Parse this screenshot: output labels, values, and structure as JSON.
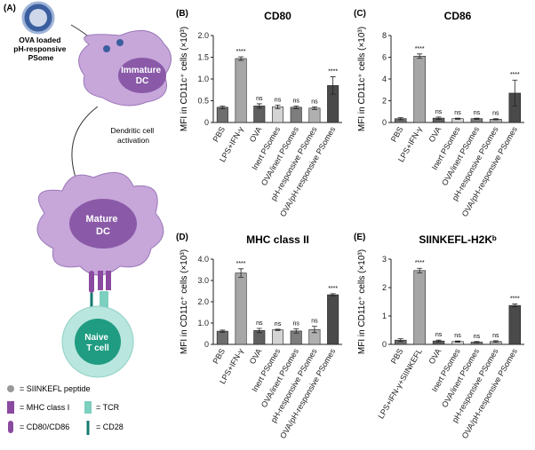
{
  "diagram": {
    "panel": "(A)",
    "psome": [
      "OVA loaded",
      "pH-responsive",
      "PSome"
    ],
    "immature": [
      "Immature",
      "DC"
    ],
    "activation": [
      "Dendritic cell",
      "activation"
    ],
    "mature": [
      "Mature",
      "DC"
    ],
    "tcell": [
      "Naive",
      "T cell"
    ],
    "legend": [
      "= SIINKEFL peptide",
      "= MHC class I",
      "= TCR",
      "= CD80/CD86",
      "= CD28"
    ]
  },
  "chart_data": [
    {
      "type": "bar",
      "panel": "(B)",
      "title": "CD80",
      "ylabel": "MFI in CD11c⁺ cells (×10³)",
      "categories": [
        "PBS",
        "LPS+IFN-γ",
        "OVA",
        "Inert PSomes",
        "OVA/inert PSomes",
        "pH-responsive PSomes",
        "OVA/pH-responsive PSomes"
      ],
      "values": [
        0.35,
        1.47,
        0.38,
        0.36,
        0.35,
        0.33,
        0.85
      ],
      "errors": [
        0.03,
        0.04,
        0.05,
        0.04,
        0.03,
        0.03,
        0.2
      ],
      "significance": [
        null,
        "****",
        "ns",
        "ns",
        "ns",
        "ns",
        "****"
      ],
      "colors": [
        "#6e6e6e",
        "#a6a6a6",
        "#5f5f5f",
        "#d4d4d4",
        "#7d7d7d",
        "#b0b0b0",
        "#4a4a4a"
      ],
      "ylim": [
        0,
        2
      ],
      "yticks": [
        0,
        0.5,
        {
          "value": 1,
          "label": "1.0"
        },
        1.5,
        {
          "value": 2,
          "label": "2.0"
        }
      ]
    },
    {
      "type": "bar",
      "panel": "(C)",
      "title": "CD86",
      "ylabel": "MFI in CD11c⁺ cells (×10³)",
      "categories": [
        "PBS",
        "LPS+IFN-γ",
        "OVA",
        "Inert PSomes",
        "OVA/inert PSomes",
        "pH-responsive PSomes",
        "OVA/pH-responsive PSomes"
      ],
      "values": [
        0.35,
        6.1,
        0.4,
        0.35,
        0.35,
        0.3,
        2.7
      ],
      "errors": [
        0.1,
        0.2,
        0.1,
        0.05,
        0.05,
        0.05,
        1.2
      ],
      "significance": [
        null,
        "****",
        "ns",
        "ns",
        "ns",
        "ns",
        "****"
      ],
      "colors": [
        "#6e6e6e",
        "#a6a6a6",
        "#5f5f5f",
        "#d4d4d4",
        "#7d7d7d",
        "#b0b0b0",
        "#4a4a4a"
      ],
      "ylim": [
        0,
        8
      ],
      "yticks": [
        0,
        2,
        4,
        6,
        8
      ]
    },
    {
      "type": "bar",
      "panel": "(D)",
      "title": "MHC class II",
      "ylabel": "MFI in CD11c⁺ cells (×10³)",
      "categories": [
        "PBS",
        "LPS+IFN-γ",
        "OVA",
        "Inert PSomes",
        "OVA/inert PSomes",
        "pH-responsive PSomes",
        "OVA/pH-responsive PSomes"
      ],
      "values": [
        0.62,
        3.35,
        0.65,
        0.68,
        0.63,
        0.7,
        2.33
      ],
      "errors": [
        0.05,
        0.2,
        0.1,
        0.03,
        0.1,
        0.15,
        0.05
      ],
      "significance": [
        null,
        "****",
        "ns",
        "ns",
        "ns",
        "ns",
        "****"
      ],
      "colors": [
        "#6e6e6e",
        "#a6a6a6",
        "#5f5f5f",
        "#d4d4d4",
        "#7d7d7d",
        "#b0b0b0",
        "#4a4a4a"
      ],
      "ylim": [
        0,
        4
      ],
      "yticks": [
        0,
        {
          "value": 1,
          "label": "1.0"
        },
        {
          "value": 2,
          "label": "2.0"
        },
        {
          "value": 3,
          "label": "3.0"
        },
        {
          "value": 4,
          "label": "4.0"
        }
      ]
    },
    {
      "type": "bar",
      "panel": "(E)",
      "title": "SIINKEFL-H2Kᵇ",
      "ylabel": "MFI in CD11c⁺ cells (×10³)",
      "categories": [
        "PBS",
        "LPS+IFN-γ+SIINKEFL",
        "OVA",
        "Inert PSomes",
        "OVA/inert PSomes",
        "pH-responsive PSomes",
        "OVA/pH-responsive PSomes"
      ],
      "values": [
        0.15,
        2.6,
        0.12,
        0.1,
        0.08,
        0.1,
        1.37
      ],
      "errors": [
        0.05,
        0.08,
        0.03,
        0.02,
        0.02,
        0.03,
        0.05
      ],
      "significance": [
        null,
        "****",
        "ns",
        "ns",
        "ns",
        "ns",
        "****"
      ],
      "colors": [
        "#6e6e6e",
        "#a6a6a6",
        "#5f5f5f",
        "#d4d4d4",
        "#7d7d7d",
        "#b0b0b0",
        "#4a4a4a"
      ],
      "ylim": [
        0,
        3
      ],
      "yticks": [
        0,
        1,
        2,
        3
      ]
    }
  ]
}
